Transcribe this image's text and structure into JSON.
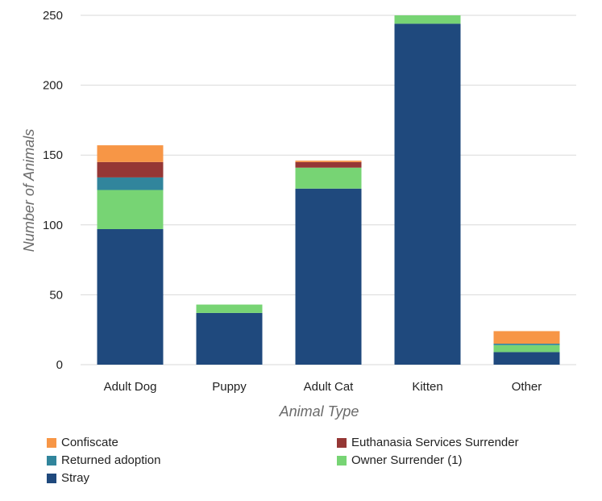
{
  "chart_data": {
    "type": "bar",
    "stacked": true,
    "categories": [
      "Adult Dog",
      "Puppy",
      "Adult Cat",
      "Kitten",
      "Other"
    ],
    "series": [
      {
        "name": "Stray",
        "color": "#1f497d",
        "values": [
          97,
          37,
          126,
          244,
          9
        ]
      },
      {
        "name": "Owner Surrender (1)",
        "color": "#77d474",
        "values": [
          28,
          6,
          15,
          6,
          5
        ]
      },
      {
        "name": "Returned adoption",
        "color": "#31859c",
        "values": [
          9,
          0,
          0,
          0,
          1
        ]
      },
      {
        "name": "Euthanasia Services Surrender",
        "color": "#953735",
        "values": [
          11,
          0,
          4,
          0,
          0
        ]
      },
      {
        "name": "Confiscate",
        "color": "#f79646",
        "values": [
          12,
          0,
          1,
          0,
          9
        ]
      }
    ],
    "xlabel": "Animal Type",
    "ylabel": "Number of Animals",
    "ylim": [
      0,
      250
    ],
    "yticks": [
      0,
      50,
      100,
      150,
      200,
      250
    ],
    "grid": true,
    "legend_position": "bottom",
    "legend_order": [
      "Confiscate",
      "Euthanasia Services Surrender",
      "Returned adoption",
      "Owner Surrender (1)",
      "Stray"
    ]
  }
}
